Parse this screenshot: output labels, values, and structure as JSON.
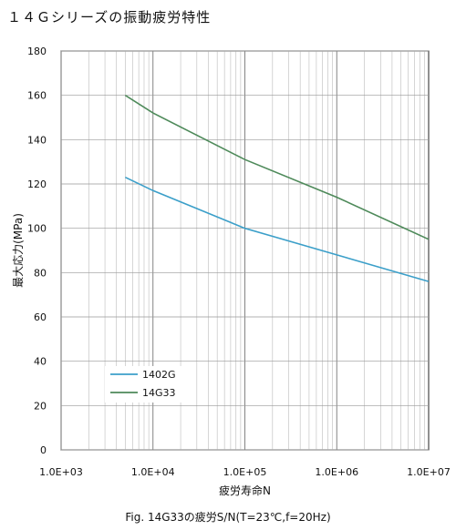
{
  "page": {
    "title": "１４Ｇシリーズの振動疲労特性"
  },
  "chart_data": {
    "type": "line",
    "title": "",
    "xlabel": "疲労寿命N",
    "ylabel": "最大応力(MPa)",
    "xscale": "log",
    "xlim": [
      1000,
      10000000
    ],
    "ylim": [
      0,
      180
    ],
    "x_ticks": [
      1000,
      10000,
      100000,
      1000000,
      10000000
    ],
    "x_tick_labels": [
      "1.0E+03",
      "1.0E+04",
      "1.0E+05",
      "1.0E+06",
      "1.0E+07"
    ],
    "y_ticks": [
      0,
      20,
      40,
      60,
      80,
      100,
      120,
      140,
      160,
      180
    ],
    "grid": true,
    "legend_position": "bottom-left",
    "series": [
      {
        "name": "1402G",
        "color": "#3b9fc9",
        "x": [
          5000,
          10000,
          100000,
          1000000,
          10000000
        ],
        "y": [
          123,
          117,
          100,
          88,
          76
        ]
      },
      {
        "name": "14G33",
        "color": "#4e8a5a",
        "x": [
          5000,
          10000,
          100000,
          1000000,
          10000000
        ],
        "y": [
          160,
          152,
          131,
          114,
          95
        ]
      }
    ],
    "caption": "Fig. 14G33の疲労S/N(T=23℃,f=20Hz)"
  }
}
